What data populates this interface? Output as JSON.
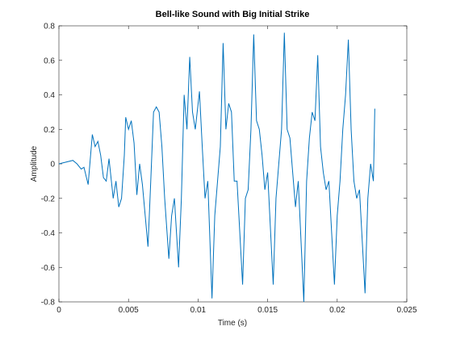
{
  "chart_data": {
    "type": "line",
    "title": "Bell-like Sound with Big Initial Strike",
    "xlabel": "Time (s)",
    "ylabel": "Amplitude",
    "x": [
      0,
      0.0005,
      0.001,
      0.0013,
      0.0016,
      0.0018,
      0.0021,
      0.0024,
      0.0026,
      0.0028,
      0.003,
      0.0032,
      0.0034,
      0.0036,
      0.0039,
      0.0041,
      0.0043,
      0.0045,
      0.0047,
      0.0048,
      0.005,
      0.0052,
      0.0054,
      0.0056,
      0.0058,
      0.006,
      0.0062,
      0.0064,
      0.0066,
      0.0068,
      0.007,
      0.0072,
      0.0074,
      0.0076,
      0.0079,
      0.0081,
      0.0083,
      0.0086,
      0.0088,
      0.009,
      0.0092,
      0.0094,
      0.0096,
      0.0098,
      0.0101,
      0.0103,
      0.0105,
      0.0107,
      0.011,
      0.0112,
      0.0114,
      0.0116,
      0.0118,
      0.012,
      0.0122,
      0.0124,
      0.0126,
      0.0128,
      0.0132,
      0.0134,
      0.0136,
      0.0138,
      0.014,
      0.0142,
      0.0144,
      0.0146,
      0.0148,
      0.015,
      0.0154,
      0.0156,
      0.0158,
      0.016,
      0.0162,
      0.0164,
      0.0166,
      0.0168,
      0.017,
      0.0172,
      0.0176,
      0.0178,
      0.018,
      0.0182,
      0.0184,
      0.0186,
      0.0188,
      0.019,
      0.0192,
      0.0194,
      0.0198,
      0.02,
      0.0202,
      0.0204,
      0.0206,
      0.0208,
      0.021,
      0.0212,
      0.0214,
      0.0216,
      0.022,
      0.0222,
      0.0224,
      0.0226,
      0.0227
    ],
    "series": [
      {
        "name": "Amplitude",
        "color": "#0072bd",
        "values": [
          0,
          0.01,
          0.02,
          0.0,
          -0.03,
          -0.02,
          -0.12,
          0.17,
          0.1,
          0.13,
          0.05,
          -0.08,
          -0.1,
          0.03,
          -0.2,
          -0.1,
          -0.25,
          -0.2,
          0.05,
          0.27,
          0.2,
          0.25,
          0.12,
          -0.18,
          0.0,
          -0.12,
          -0.3,
          -0.48,
          -0.1,
          0.3,
          0.33,
          0.3,
          0.1,
          -0.2,
          -0.55,
          -0.3,
          -0.2,
          -0.6,
          -0.2,
          0.4,
          0.2,
          0.62,
          0.3,
          0.2,
          0.42,
          0.1,
          -0.2,
          -0.1,
          -0.78,
          -0.3,
          -0.1,
          0.1,
          0.7,
          0.2,
          0.35,
          0.3,
          -0.1,
          -0.1,
          -0.7,
          -0.2,
          -0.15,
          0.2,
          0.75,
          0.25,
          0.2,
          0.05,
          -0.15,
          -0.05,
          -0.7,
          -0.2,
          0.0,
          0.2,
          0.76,
          0.2,
          0.15,
          -0.05,
          -0.25,
          -0.1,
          -0.8,
          -0.1,
          0.15,
          0.3,
          0.25,
          0.63,
          0.1,
          -0.05,
          -0.15,
          -0.1,
          -0.7,
          -0.3,
          -0.1,
          0.2,
          0.4,
          0.72,
          0.2,
          -0.1,
          -0.2,
          -0.15,
          -0.75,
          -0.2,
          0.0,
          -0.1,
          0.32
        ]
      }
    ],
    "xlim": [
      0,
      0.025
    ],
    "xticks": [
      0,
      0.005,
      0.01,
      0.015,
      0.02,
      0.025
    ],
    "ylim": [
      -0.8,
      0.8
    ],
    "yticks": [
      -0.8,
      -0.6,
      -0.4,
      -0.2,
      0,
      0.2,
      0.4,
      0.6,
      0.8
    ]
  }
}
